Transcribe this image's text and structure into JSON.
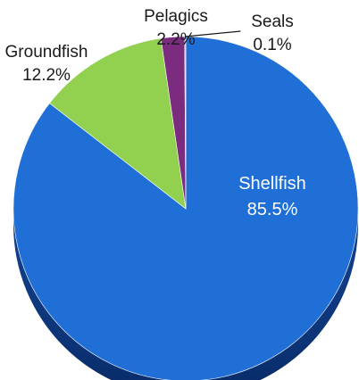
{
  "chart_data": {
    "type": "pie",
    "style": "3d",
    "slices": [
      {
        "label": "Shellfish",
        "value": 85.5,
        "value_label": "85.5%",
        "color": "#1f6fd6",
        "side_color": "#0b3a8c"
      },
      {
        "label": "Groundfish",
        "value": 12.2,
        "value_label": "12.2%",
        "color": "#92d050",
        "side_color": "#5f8f2a"
      },
      {
        "label": "Pelagics",
        "value": 2.2,
        "value_label": "2.2%",
        "color": "#7b2c7e",
        "side_color": "#4e1a50"
      },
      {
        "label": "Seals",
        "value": 0.1,
        "value_label": "0.1%",
        "color": "#c8c86a",
        "side_color": "#8a8a3a"
      }
    ]
  }
}
